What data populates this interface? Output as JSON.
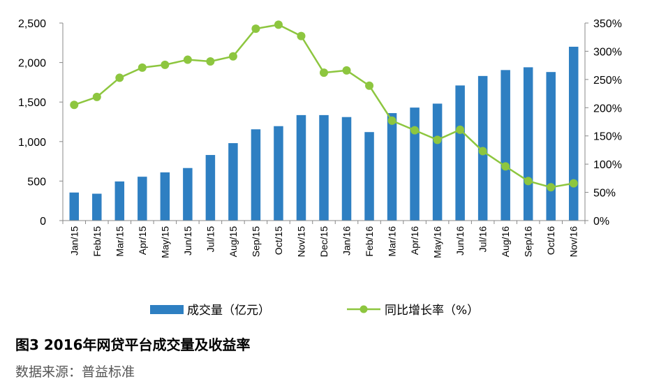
{
  "chart_data": {
    "type": "bar",
    "title": "图3 2016年网贷平台成交量及收益率",
    "source": "数据来源：普益标准",
    "categories": [
      "Jan/15",
      "Feb/15",
      "Mar/15",
      "Apr/15",
      "May/15",
      "Jun/15",
      "Jul/15",
      "Aug/15",
      "Sep/15",
      "Oct/15",
      "Nov/15",
      "Dec/15",
      "Jan/16",
      "Feb/16",
      "Mar/16",
      "Apr/16",
      "May/16",
      "Jun/16",
      "Jul/16",
      "Aug/16",
      "Sep/16",
      "Oct/16",
      "Nov/16"
    ],
    "series": [
      {
        "name": "成交量（亿元）",
        "type": "bar",
        "axis": "left",
        "color": "#2E7FC2",
        "values": [
          355,
          340,
          495,
          555,
          610,
          665,
          830,
          980,
          1155,
          1195,
          1335,
          1335,
          1310,
          1120,
          1360,
          1430,
          1480,
          1710,
          1830,
          1905,
          1940,
          1880,
          2200
        ]
      },
      {
        "name": "同比增长率（%）",
        "type": "line",
        "axis": "right",
        "color": "#8DC63F",
        "values": [
          205,
          219,
          253,
          271,
          276,
          285,
          282,
          291,
          340,
          347,
          327,
          262,
          266,
          239,
          177,
          160,
          143,
          161,
          123,
          96,
          70,
          59,
          66
        ]
      }
    ],
    "y_left": {
      "min": 0,
      "max": 2500,
      "ticks": [
        "0",
        "500",
        "1,000",
        "1,500",
        "2,000",
        "2,500"
      ]
    },
    "y_right": {
      "min": 0,
      "max": 350,
      "ticks": [
        "0%",
        "50%",
        "100%",
        "150%",
        "200%",
        "250%",
        "300%",
        "350%"
      ]
    },
    "grid": false,
    "legend_position": "bottom"
  }
}
